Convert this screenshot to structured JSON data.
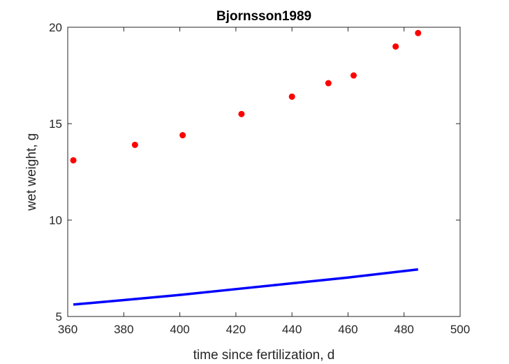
{
  "chart_data": {
    "type": "scatter",
    "title": "Bjornsson1989",
    "xlabel": "time since fertilization, d",
    "ylabel": "wet weight, g",
    "xlim": [
      360,
      500
    ],
    "ylim": [
      5,
      20
    ],
    "xticks": [
      360,
      380,
      400,
      420,
      440,
      460,
      480,
      500
    ],
    "yticks": [
      5,
      10,
      15,
      20
    ],
    "grid": false,
    "series": [
      {
        "kind": "points",
        "color": "#ff0000",
        "x": [
          362,
          384,
          401,
          422,
          440,
          453,
          462,
          477,
          485
        ],
        "y": [
          13.1,
          13.9,
          14.4,
          15.5,
          16.4,
          17.1,
          17.5,
          19.0,
          19.7
        ]
      },
      {
        "kind": "line",
        "color": "#0000ff",
        "x": [
          362,
          380,
          400,
          420,
          440,
          460,
          485
        ],
        "y": [
          5.62,
          5.85,
          6.12,
          6.42,
          6.72,
          7.02,
          7.44
        ]
      }
    ]
  }
}
